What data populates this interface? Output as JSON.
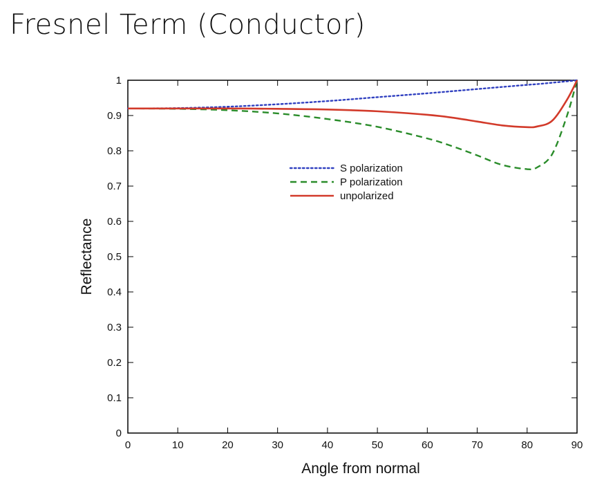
{
  "slide": {
    "title": "Fresnel Term (Conductor)"
  },
  "chart_data": {
    "type": "line",
    "title": "Fresnel Term (Conductor)",
    "xlabel": "Angle from normal",
    "ylabel": "Reflectance",
    "xlim": [
      0,
      90
    ],
    "ylim": [
      0,
      1
    ],
    "xticks": [
      0,
      10,
      20,
      30,
      40,
      50,
      60,
      70,
      80,
      90
    ],
    "yticks": [
      0,
      0.1,
      0.2,
      0.3,
      0.4,
      0.5,
      0.6,
      0.7,
      0.8,
      0.9,
      1
    ],
    "ytick_labels": [
      "0",
      "0.1",
      "0.2",
      "0.3",
      "0.4",
      "0.5",
      "0.6",
      "0.7",
      "0.8",
      "0.9",
      "1"
    ],
    "grid": false,
    "legend_position": "center",
    "x": [
      0,
      10,
      20,
      30,
      40,
      50,
      60,
      65,
      70,
      75,
      80,
      82,
      85,
      88,
      90
    ],
    "series": [
      {
        "name": "S polarization",
        "color": "#3040c0",
        "style": "dotted",
        "values": [
          0.92,
          0.921,
          0.925,
          0.932,
          0.941,
          0.952,
          0.963,
          0.969,
          0.975,
          0.981,
          0.987,
          0.989,
          0.993,
          0.997,
          1.0
        ]
      },
      {
        "name": "P polarization",
        "color": "#2a8c2a",
        "style": "dashed",
        "values": [
          0.92,
          0.919,
          0.915,
          0.906,
          0.89,
          0.868,
          0.835,
          0.813,
          0.787,
          0.76,
          0.748,
          0.753,
          0.79,
          0.9,
          1.0
        ]
      },
      {
        "name": "unpolarized",
        "color": "#d23a2a",
        "style": "solid",
        "values": [
          0.92,
          0.92,
          0.92,
          0.919,
          0.917,
          0.912,
          0.902,
          0.894,
          0.883,
          0.872,
          0.867,
          0.869,
          0.885,
          0.945,
          1.0
        ]
      }
    ]
  }
}
